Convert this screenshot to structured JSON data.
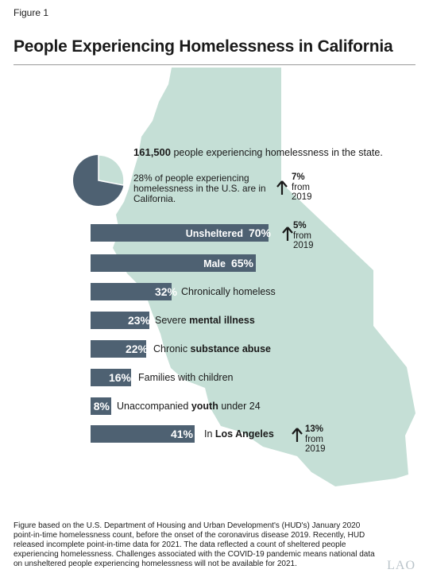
{
  "figure_label": "Figure 1",
  "title": "People Experiencing Homelessness in California",
  "summary": {
    "total_value": "161,500",
    "total_text": " people experiencing homelessness in the state.",
    "share_text": "28% of people experiencing homelessness in the U.S. are in California.",
    "share_change": {
      "pct": "7%",
      "from": "from",
      "year": "2019"
    }
  },
  "colors": {
    "map": "#c5dfd6",
    "bar": "#4e6172",
    "pie_fill": "#4e6172",
    "pie_rest": "#c5dfd6"
  },
  "bars": [
    {
      "inside_label": "Unsheltered",
      "value_text": "70%",
      "value": 70,
      "pre": "",
      "bold": "",
      "post": ""
    },
    {
      "inside_label": "Male",
      "value_text": "65%",
      "value": 65,
      "pre": "",
      "bold": "",
      "post": ""
    },
    {
      "inside_label": "",
      "value_text": "32%",
      "value": 32,
      "pre": "Chronically homeless",
      "bold": "",
      "post": ""
    },
    {
      "inside_label": "",
      "value_text": "23%",
      "value": 23,
      "pre": "Severe ",
      "bold": "mental illness",
      "post": ""
    },
    {
      "inside_label": "",
      "value_text": "22%",
      "value": 22,
      "pre": "Chronic ",
      "bold": "substance abuse",
      "post": ""
    },
    {
      "inside_label": "",
      "value_text": "16%",
      "value": 16,
      "pre": "Families with children",
      "bold": "",
      "post": ""
    },
    {
      "inside_label": "",
      "value_text": "8%",
      "value": 8,
      "pre": "Unaccompanied ",
      "bold": "youth",
      "post": " under 24"
    },
    {
      "inside_label": "",
      "value_text": "41%",
      "value": 41,
      "pre": "In ",
      "bold": "Los Angeles",
      "post": ""
    }
  ],
  "changes": {
    "unsheltered": {
      "pct": "5%",
      "from": "from",
      "year": "2019"
    },
    "los_angeles": {
      "pct": "13%",
      "from": "from",
      "year": "2019"
    }
  },
  "chart_data": {
    "type": "bar",
    "title": "People Experiencing Homelessness in California",
    "categories": [
      "Unsheltered",
      "Male",
      "Chronically homeless",
      "Severe mental illness",
      "Chronic substance abuse",
      "Families with children",
      "Unaccompanied youth under 24",
      "In Los Angeles"
    ],
    "values": [
      70,
      65,
      32,
      23,
      22,
      16,
      8,
      41
    ],
    "unit": "%",
    "pie": {
      "label": "28% of people experiencing homelessness in the U.S. are in California.",
      "value": 28
    }
  },
  "footnote": "Figure based on the U.S. Department of Housing and Urban Development's (HUD's) January 2020 point-in-time homelessness count, before the onset of the coronavirus disease 2019. Recently, HUD released incomplete point-in-time data for 2021. The data reflected a count of sheltered people experiencing homelessness. Challenges associated with the COVID-19 pandemic means national data on unsheltered people experiencing homelessness will not be available for 2021.",
  "logo": "LAO"
}
